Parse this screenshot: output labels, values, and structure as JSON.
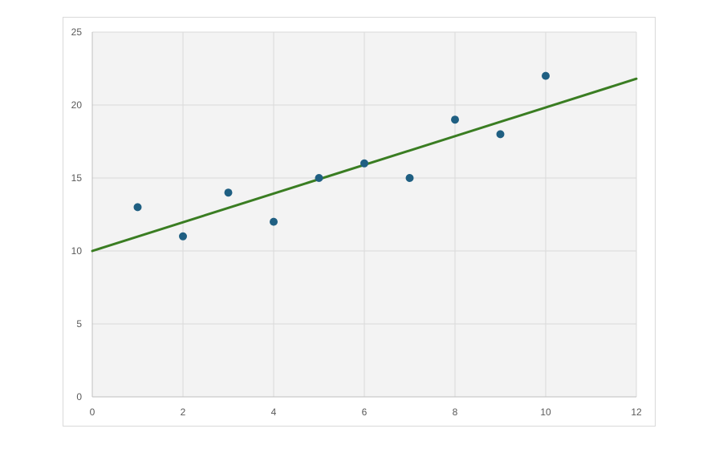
{
  "chart_data": {
    "type": "scatter",
    "title": "",
    "xlabel": "",
    "ylabel": "",
    "xlim": [
      0,
      12
    ],
    "ylim": [
      0,
      25
    ],
    "x_ticks": [
      "0",
      "2",
      "4",
      "6",
      "8",
      "10",
      "12"
    ],
    "y_ticks": [
      "0",
      "5",
      "10",
      "15",
      "20",
      "25"
    ],
    "grid": true,
    "series": [
      {
        "x": [
          1,
          2,
          3,
          4,
          5,
          6,
          7,
          8,
          9,
          10
        ],
        "y": [
          13,
          11,
          14,
          12,
          15,
          16,
          15,
          19,
          18,
          22
        ]
      }
    ],
    "trendline": {
      "type": "linear",
      "x": [
        0,
        12
      ],
      "y": [
        10,
        21.8
      ]
    }
  },
  "colors": {
    "points": "#1f5f82",
    "trendline": "#3a7d22",
    "plot_background": "#f3f3f3",
    "gridline": "#d9d9d9",
    "axis_text": "#595959"
  }
}
